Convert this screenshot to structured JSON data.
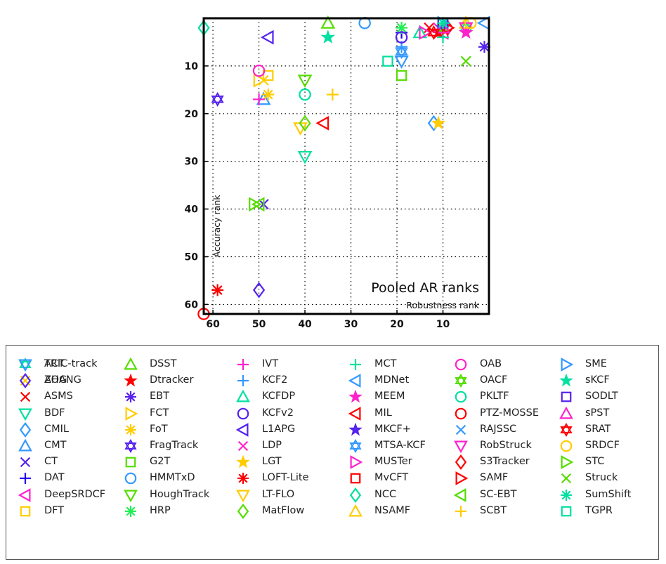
{
  "chart_data": {
    "type": "scatter",
    "title": "Pooled AR ranks",
    "xlabel": "Robustness rank",
    "ylabel": "Accuracy rank",
    "xlim": [
      62,
      0
    ],
    "ylim": [
      62,
      0
    ],
    "x_reversed": true,
    "y_reversed": true,
    "xticks": [
      60,
      50,
      40,
      30,
      20,
      10
    ],
    "yticks": [
      10,
      20,
      30,
      40,
      50,
      60
    ],
    "grid": true,
    "legend_placement": "below",
    "series": [
      {
        "name": "ACT",
        "marker": "hexagram",
        "color": "#00e0a0",
        "x": 5,
        "y": 2
      },
      {
        "name": "AOG",
        "marker": "x",
        "color": "#ffd000",
        "x": 49,
        "y": 13
      },
      {
        "name": "ASMS",
        "marker": "x",
        "color": "#ff0000",
        "x": 13,
        "y": 2
      },
      {
        "name": "BDF",
        "marker": "triangle-down",
        "color": "#00e0a0",
        "x": 40,
        "y": 29
      },
      {
        "name": "CMIL",
        "marker": "diamond",
        "color": "#3399ff",
        "x": 12,
        "y": 22
      },
      {
        "name": "CMT",
        "marker": "triangle-up",
        "color": "#3399ff",
        "x": 49,
        "y": 17
      },
      {
        "name": "CT",
        "marker": "x",
        "color": "#5522ee",
        "x": 49,
        "y": 39
      },
      {
        "name": "DAT",
        "marker": "plus",
        "color": "#2200ee",
        "x": 19,
        "y": 3
      },
      {
        "name": "DeepSRDCF",
        "marker": "triangle-left",
        "color": "#ff22cc",
        "x": 10,
        "y": 3
      },
      {
        "name": "DFT",
        "marker": "square",
        "color": "#ffcc00",
        "x": 48,
        "y": 12
      },
      {
        "name": "DSST",
        "marker": "triangle-up",
        "color": "#55dd00",
        "x": 35,
        "y": 1
      },
      {
        "name": "Dtracker",
        "marker": "pentagram",
        "color": "#ff0000",
        "x": 11,
        "y": 3
      },
      {
        "name": "EBT",
        "marker": "asterisk",
        "color": "#5522ee",
        "x": 1,
        "y": 6
      },
      {
        "name": "FCT",
        "marker": "triangle-right",
        "color": "#ffcc00",
        "x": 50,
        "y": 13
      },
      {
        "name": "FoT",
        "marker": "asterisk",
        "color": "#ffcc00",
        "x": 48,
        "y": 16
      },
      {
        "name": "FragTrack",
        "marker": "hexagram",
        "color": "#5522ee",
        "x": 59,
        "y": 17
      },
      {
        "name": "G2T",
        "marker": "square",
        "color": "#55dd00",
        "x": 19,
        "y": 12
      },
      {
        "name": "HMMTxD",
        "marker": "circle",
        "color": "#3399ff",
        "x": 27,
        "y": 1
      },
      {
        "name": "HoughTrack",
        "marker": "triangle-down",
        "color": "#55dd00",
        "x": 40,
        "y": 13
      },
      {
        "name": "HRP",
        "marker": "asterisk",
        "color": "#22ee55",
        "x": 19,
        "y": 2
      },
      {
        "name": "IVT",
        "marker": "plus",
        "color": "#ff22cc",
        "x": 50,
        "y": 17
      },
      {
        "name": "KCF2",
        "marker": "plus",
        "color": "#3399ff",
        "x": 19,
        "y": 6
      },
      {
        "name": "KCFDP",
        "marker": "triangle-up",
        "color": "#00e0a0",
        "x": 15,
        "y": 3
      },
      {
        "name": "KCFv2",
        "marker": "circle",
        "color": "#5522ee",
        "x": 19,
        "y": 4
      },
      {
        "name": "L1APG",
        "marker": "triangle-left",
        "color": "#5522ee",
        "x": 48,
        "y": 4
      },
      {
        "name": "LDP",
        "marker": "x",
        "color": "#ff22cc",
        "x": 11,
        "y": 2
      },
      {
        "name": "LGT",
        "marker": "pentagram",
        "color": "#ffcc00",
        "x": 11,
        "y": 22
      },
      {
        "name": "LOFT-Lite",
        "marker": "asterisk",
        "color": "#ff0000",
        "x": 59,
        "y": 57
      },
      {
        "name": "LT-FLO",
        "marker": "triangle-down",
        "color": "#ffcc00",
        "x": 41,
        "y": 23
      },
      {
        "name": "MatFlow",
        "marker": "diamond",
        "color": "#55dd00",
        "x": 40,
        "y": 22
      },
      {
        "name": "MCT",
        "marker": "plus",
        "color": "#00e0a0",
        "x": 10,
        "y": 4
      },
      {
        "name": "MDNet",
        "marker": "triangle-left",
        "color": "#3399ff",
        "x": 1,
        "y": 1
      },
      {
        "name": "MEEM",
        "marker": "pentagram",
        "color": "#ff22cc",
        "x": 5,
        "y": 3
      },
      {
        "name": "MIL",
        "marker": "triangle-left",
        "color": "#ff0000",
        "x": 36,
        "y": 22
      },
      {
        "name": "MKCF+",
        "marker": "pentagram",
        "color": "#5522ee",
        "x": 10,
        "y": 2
      },
      {
        "name": "MTSA-KCF",
        "marker": "hexagram",
        "color": "#3399ff",
        "x": 19,
        "y": 7
      },
      {
        "name": "MUSTer",
        "marker": "triangle-right",
        "color": "#ff22cc",
        "x": 14,
        "y": 3
      },
      {
        "name": "MvCFT",
        "marker": "square",
        "color": "#ff0000",
        "x": 10,
        "y": 1
      },
      {
        "name": "NCC",
        "marker": "diamond",
        "color": "#00e0a0",
        "x": 62,
        "y": 2
      },
      {
        "name": "NSAMF",
        "marker": "triangle-up",
        "color": "#ffcc00",
        "x": 5,
        "y": 1
      },
      {
        "name": "OAB",
        "marker": "circle",
        "color": "#ff22cc",
        "x": 50,
        "y": 11
      },
      {
        "name": "OACF",
        "marker": "hexagram",
        "color": "#55dd00",
        "x": 10,
        "y": 2
      },
      {
        "name": "PKLTF",
        "marker": "circle",
        "color": "#00e0a0",
        "x": 40,
        "y": 16
      },
      {
        "name": "PTZ-MOSSE",
        "marker": "circle",
        "color": "#ff0000",
        "x": 62,
        "y": 62
      },
      {
        "name": "RAJSSC",
        "marker": "x",
        "color": "#3399ff",
        "x": 10,
        "y": 1
      },
      {
        "name": "RobStruck",
        "marker": "triangle-down",
        "color": "#ff22cc",
        "x": 5,
        "y": 2
      },
      {
        "name": "S3Tracker",
        "marker": "diamond",
        "color": "#ff0000",
        "x": 9,
        "y": 2
      },
      {
        "name": "SAMF",
        "marker": "triangle-right",
        "color": "#ff0000",
        "x": 9,
        "y": 2
      },
      {
        "name": "SC-EBT",
        "marker": "triangle-left",
        "color": "#55dd00",
        "x": 50,
        "y": 39
      },
      {
        "name": "SCBT",
        "marker": "plus",
        "color": "#ffcc00",
        "x": 34,
        "y": 16
      },
      {
        "name": "SME",
        "marker": "triangle-right",
        "color": "#3399ff",
        "x": 10,
        "y": 1
      },
      {
        "name": "sKCF",
        "marker": "pentagram",
        "color": "#00e0a0",
        "x": 35,
        "y": 4
      },
      {
        "name": "SODLT",
        "marker": "square",
        "color": "#5522ee",
        "x": 10,
        "y": 1
      },
      {
        "name": "sPST",
        "marker": "triangle-up",
        "color": "#ff22cc",
        "x": 10,
        "y": 2
      },
      {
        "name": "SRAT",
        "marker": "hexagram",
        "color": "#ff0000",
        "x": 12,
        "y": 3
      },
      {
        "name": "SRDCF",
        "marker": "circle",
        "color": "#ffcc00",
        "x": 4,
        "y": 1
      },
      {
        "name": "STC",
        "marker": "triangle-right",
        "color": "#55dd00",
        "x": 51,
        "y": 39
      },
      {
        "name": "Struck",
        "marker": "x",
        "color": "#55dd00",
        "x": 5,
        "y": 9
      },
      {
        "name": "SumShift",
        "marker": "asterisk",
        "color": "#00e0a0",
        "x": 10,
        "y": 1
      },
      {
        "name": "TGPR",
        "marker": "square",
        "color": "#00e0a0",
        "x": 22,
        "y": 9
      },
      {
        "name": "TRIC-track",
        "marker": "triangle-down",
        "color": "#3399ff",
        "x": 19,
        "y": 9
      },
      {
        "name": "ZHANG",
        "marker": "diamond",
        "color": "#5522ee",
        "x": 50,
        "y": 57
      }
    ]
  }
}
